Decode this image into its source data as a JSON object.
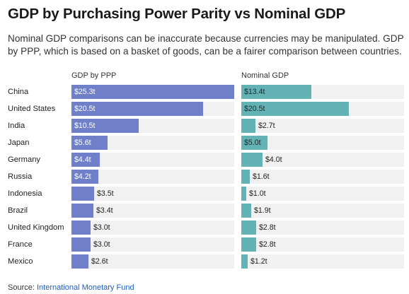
{
  "header": {
    "title": "GDP by Purchasing Power Parity vs Nominal GDP",
    "subtitle": "Nominal GDP comparisons can be inaccurate because currencies may be manipulated. GDP by PPP, which is based on a basket of goods, can be a fairer comparison between countries."
  },
  "footer": {
    "source_label": "Source:",
    "source_link": "International Monetary Fund"
  },
  "colors": {
    "ppp_bar": "#6f7fc9",
    "nominal_bar": "#63b2b6",
    "track": "#f1f1f1",
    "link": "#1f5fbf"
  },
  "chart_data": [
    {
      "type": "bar",
      "orientation": "horizontal",
      "title": "GDP by PPP",
      "categories": [
        "China",
        "United States",
        "India",
        "Japan",
        "Germany",
        "Russia",
        "Indonesia",
        "Brazil",
        "United Kingdom",
        "France",
        "Mexico"
      ],
      "values": [
        25.3,
        20.5,
        10.5,
        5.6,
        4.4,
        4.2,
        3.5,
        3.4,
        3.0,
        3.0,
        2.6
      ],
      "labels": [
        "$25.3t",
        "$20.5t",
        "$10.5t",
        "$5.6t",
        "$4.4t",
        "$4.2t",
        "$3.5t",
        "$3.4t",
        "$3.0t",
        "$3.0t",
        "$2.6t"
      ],
      "xlim": [
        0,
        25.3
      ],
      "grid": false
    },
    {
      "type": "bar",
      "orientation": "horizontal",
      "title": "Nominal GDP",
      "categories": [
        "China",
        "United States",
        "India",
        "Japan",
        "Germany",
        "Russia",
        "Indonesia",
        "Brazil",
        "United Kingdom",
        "France",
        "Mexico"
      ],
      "values": [
        13.4,
        20.5,
        2.7,
        5.0,
        4.0,
        1.6,
        1.0,
        1.9,
        2.8,
        2.8,
        1.2
      ],
      "labels": [
        "$13.4t",
        "$20.5t",
        "$2.7t",
        "$5.0t",
        "$4.0t",
        "$1.6t",
        "$1.0t",
        "$1.9t",
        "$2.8t",
        "$2.8t",
        "$1.2t"
      ],
      "xlim": [
        0,
        31
      ],
      "grid": false
    }
  ]
}
